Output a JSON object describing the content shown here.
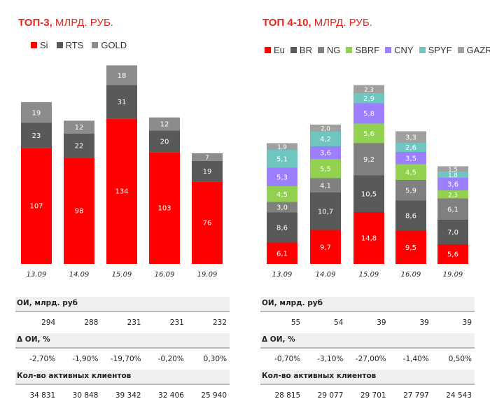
{
  "chart_data": [
    {
      "type": "bar",
      "stacked": true,
      "title_bold": "ТОП-3,",
      "title_rest": " МЛРД. РУБ.",
      "categories": [
        "13.09",
        "14.09",
        "15.09",
        "16.09",
        "19.09"
      ],
      "series": [
        {
          "name": "Si",
          "color": "#ff0000",
          "values": [
            107,
            98,
            134,
            103,
            76
          ]
        },
        {
          "name": "RTS",
          "color": "#595959",
          "values": [
            23,
            22,
            31,
            20,
            19
          ]
        },
        {
          "name": "GOLD",
          "color": "#8c8c8c",
          "values": [
            19,
            12,
            18,
            12,
            7
          ]
        }
      ],
      "legend": "top"
    },
    {
      "type": "bar",
      "stacked": true,
      "title_bold": "ТОП 4-10,",
      "title_rest": " МЛРД. РУБ.",
      "categories": [
        "13.09",
        "14.09",
        "15.09",
        "16.09",
        "19.09"
      ],
      "series": [
        {
          "name": "Eu",
          "color": "#ff0000",
          "values": [
            "6,1",
            "9,7",
            "14,8",
            "9,5",
            "5,6"
          ]
        },
        {
          "name": "BR",
          "color": "#595959",
          "values": [
            "8,6",
            "10,7",
            "10,5",
            "8,6",
            "7,0"
          ]
        },
        {
          "name": "NG",
          "color": "#808080",
          "values": [
            "3,0",
            "4,1",
            "9,2",
            "5,9",
            "6,1"
          ]
        },
        {
          "name": "SBRF",
          "color": "#92d050",
          "values": [
            "4,5",
            "5,5",
            "5,6",
            "4,5",
            "2,3"
          ]
        },
        {
          "name": "CNY",
          "color": "#9b7fff",
          "values": [
            "5,3",
            "3,6",
            "5,8",
            "3,5",
            "3,6"
          ]
        },
        {
          "name": "SPYF",
          "color": "#6fc6c0",
          "values": [
            "5,1",
            "4,2",
            "2,9",
            "2,6",
            "1,8"
          ]
        },
        {
          "name": "GAZR",
          "color": "#a0a0a0",
          "values": [
            "1,9",
            "2,0",
            "2,3",
            "3,3",
            "1,5"
          ]
        }
      ],
      "legend": "top"
    }
  ],
  "tables": [
    {
      "rows": [
        {
          "label": "ОИ, млрд. руб",
          "values": [
            "294",
            "288",
            "231",
            "231",
            "232"
          ]
        },
        {
          "label": "Δ ОИ, %",
          "values": [
            "-2,70%",
            "-1,90%",
            "-19,70%",
            "-0,20%",
            "0,30%"
          ]
        },
        {
          "label": "Кол-во активных клиентов",
          "values": [
            "34 831",
            "30 848",
            "39 342",
            "32 406",
            "25 940"
          ]
        }
      ]
    },
    {
      "rows": [
        {
          "label": "ОИ, млрд. руб",
          "values": [
            "55",
            "54",
            "39",
            "39",
            "39"
          ]
        },
        {
          "label": "Δ ОИ, %",
          "values": [
            "-0,70%",
            "-3,10%",
            "-27,00%",
            "-1,40%",
            "0,50%"
          ]
        },
        {
          "label": "Кол-во активных клиентов",
          "values": [
            "28 815",
            "29 077",
            "29 701",
            "27 797",
            "24 543"
          ]
        }
      ]
    }
  ]
}
